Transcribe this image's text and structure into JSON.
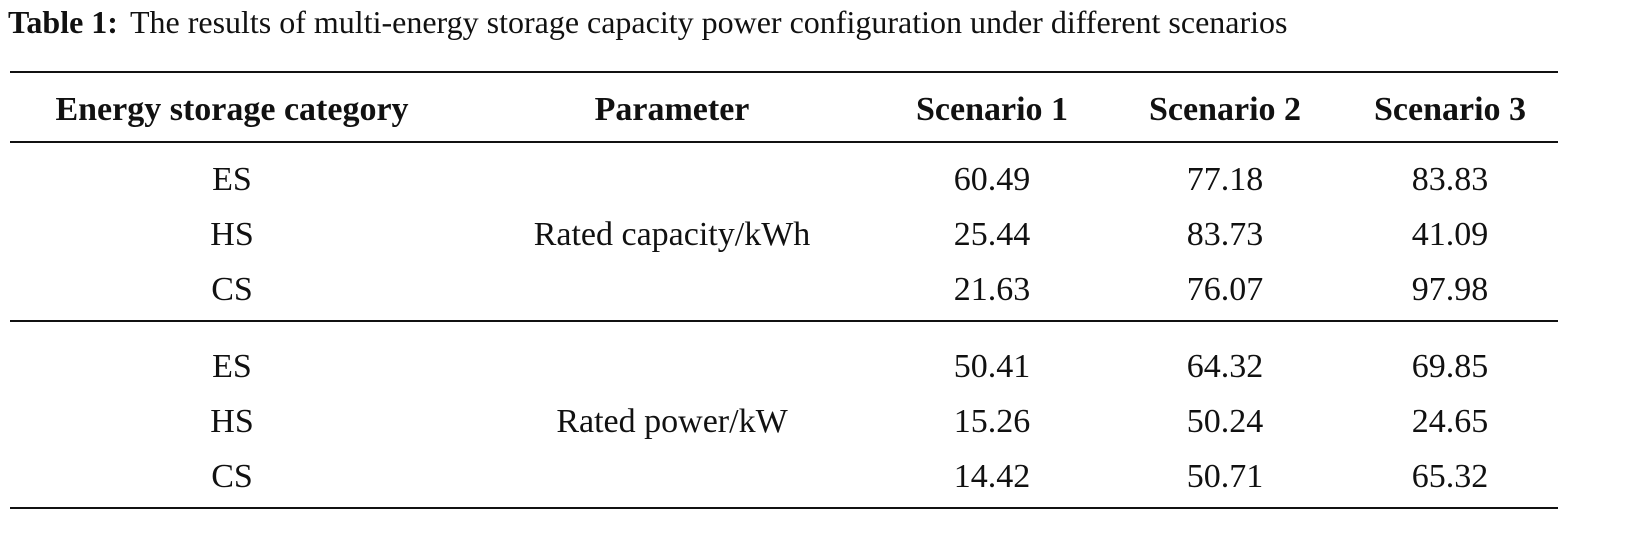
{
  "caption": {
    "label": "Table 1:",
    "text": "The results of multi-energy storage capacity power configuration under different scenarios"
  },
  "table": {
    "header": [
      "Energy storage category",
      "Parameter",
      "Scenario 1",
      "Scenario 2",
      "Scenario 3"
    ],
    "groups": [
      {
        "parameter": "Rated capacity/kWh",
        "rows": [
          [
            "ES",
            "60.49",
            "77.18",
            "83.83"
          ],
          [
            "HS",
            "25.44",
            "83.73",
            "41.09"
          ],
          [
            "CS",
            "21.63",
            "76.07",
            "97.98"
          ]
        ]
      },
      {
        "parameter": "Rated power/kW",
        "rows": [
          [
            "ES",
            "50.41",
            "64.32",
            "69.85"
          ],
          [
            "HS",
            "15.26",
            "50.24",
            "24.65"
          ],
          [
            "CS",
            "14.42",
            "50.71",
            "65.32"
          ]
        ]
      }
    ]
  }
}
